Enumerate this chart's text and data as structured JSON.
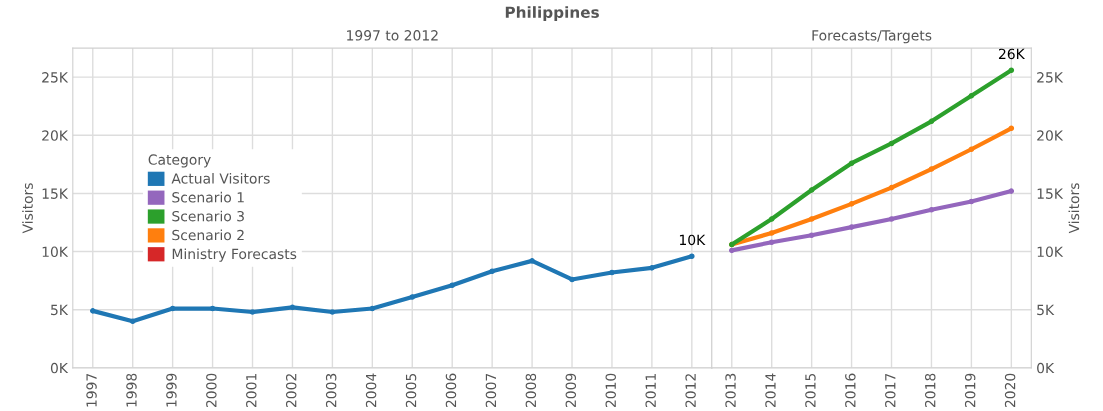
{
  "chart_data": [
    {
      "type": "line",
      "title": "Philippines",
      "subtitle": "1997 to 2012",
      "ylabel": "Visitors",
      "legend_title": "Category",
      "legend": "left",
      "grid": true,
      "marker": "circle",
      "line_style": "solid",
      "categories": [
        "1997",
        "1998",
        "1999",
        "2000",
        "2001",
        "2002",
        "2003",
        "2004",
        "2005",
        "2006",
        "2007",
        "2008",
        "2009",
        "2010",
        "2011",
        "2012"
      ],
      "ylim": [
        0,
        27.5
      ],
      "yticks": [
        {
          "value": 0,
          "label": "0K"
        },
        {
          "value": 5,
          "label": "5K"
        },
        {
          "value": 10,
          "label": "10K"
        },
        {
          "value": 15,
          "label": "15K"
        },
        {
          "value": 20,
          "label": "20K"
        },
        {
          "value": 25,
          "label": "25K"
        }
      ],
      "annotations": [
        {
          "text": "10K",
          "x": "2012",
          "y": 9.6
        }
      ],
      "series": [
        {
          "name": "Actual Visitors",
          "color": "#1f77b4",
          "values": [
            4.9,
            4.0,
            5.1,
            5.1,
            4.8,
            5.2,
            4.8,
            5.1,
            6.1,
            7.1,
            8.3,
            9.2,
            7.6,
            8.2,
            8.6,
            9.6
          ]
        },
        {
          "name": "Scenario 1",
          "color": "#9467bd",
          "values": [
            null,
            null,
            null,
            null,
            null,
            null,
            null,
            null,
            null,
            null,
            null,
            null,
            null,
            null,
            null,
            null
          ]
        },
        {
          "name": "Scenario 3",
          "color": "#2ca02c",
          "values": [
            null,
            null,
            null,
            null,
            null,
            null,
            null,
            null,
            null,
            null,
            null,
            null,
            null,
            null,
            null,
            null
          ]
        },
        {
          "name": "Scenario 2",
          "color": "#ff7f0e",
          "values": [
            null,
            null,
            null,
            null,
            null,
            null,
            null,
            null,
            null,
            null,
            null,
            null,
            null,
            null,
            null,
            null
          ]
        },
        {
          "name": "Ministry Forecasts",
          "color": "#d62728",
          "values": [
            null,
            null,
            null,
            null,
            null,
            null,
            null,
            null,
            null,
            null,
            null,
            null,
            null,
            null,
            null,
            null
          ]
        }
      ]
    },
    {
      "type": "line",
      "subtitle": "Forecasts/Targets",
      "ylabel": "Visitors",
      "grid": true,
      "marker": "circle",
      "line_style": "solid",
      "categories": [
        "2013",
        "2014",
        "2015",
        "2016",
        "2017",
        "2018",
        "2019",
        "2020"
      ],
      "ylim": [
        0,
        27.5
      ],
      "yticks": [
        {
          "value": 0,
          "label": "0K"
        },
        {
          "value": 5,
          "label": "5K"
        },
        {
          "value": 10,
          "label": "10K"
        },
        {
          "value": 15,
          "label": "15K"
        },
        {
          "value": 20,
          "label": "20K"
        },
        {
          "value": 25,
          "label": "25K"
        }
      ],
      "annotations": [
        {
          "text": "26K",
          "x": "2020",
          "y": 25.6
        }
      ],
      "series": [
        {
          "color": "#9467bd",
          "values": [
            10.1,
            10.8,
            11.4,
            12.1,
            12.8,
            13.6,
            14.3,
            15.2
          ]
        },
        {
          "color": "#ff7f0e",
          "values": [
            10.6,
            11.6,
            12.8,
            14.1,
            15.5,
            17.1,
            18.8,
            20.6
          ]
        },
        {
          "color": "#2ca02c",
          "values": [
            10.6,
            12.8,
            15.3,
            17.6,
            19.3,
            21.2,
            23.4,
            25.6
          ]
        }
      ]
    }
  ]
}
